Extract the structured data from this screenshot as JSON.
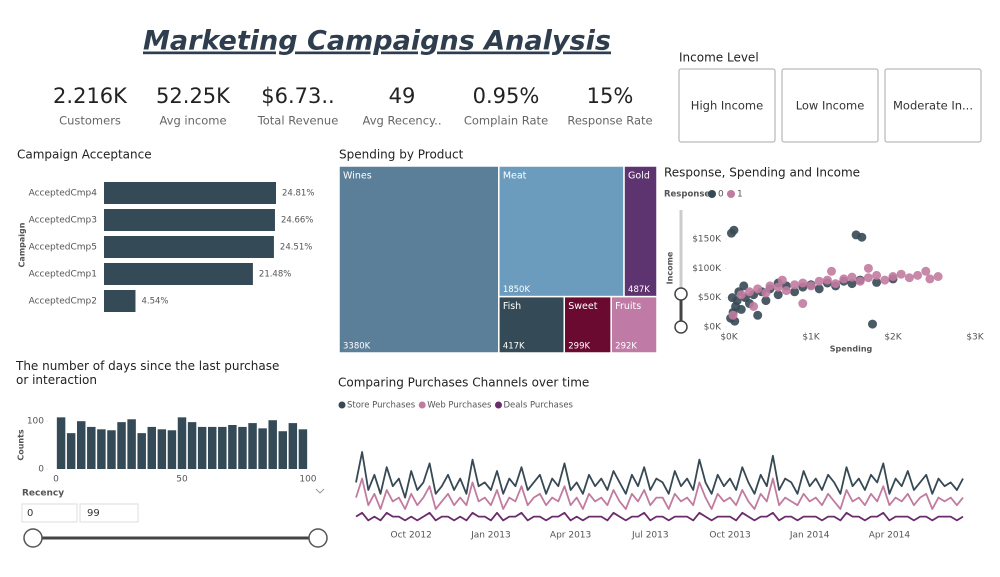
{
  "header": {
    "title": "Marketing Campaigns Analysis"
  },
  "kpis": [
    {
      "value": "2.216K",
      "label": "Customers"
    },
    {
      "value": "52.25K",
      "label": "Avg income"
    },
    {
      "value": "$6.73..",
      "label": "Total Revenue"
    },
    {
      "value": "49",
      "label": "Avg Recency.."
    },
    {
      "value": "0.95%",
      "label": "Complain Rate"
    },
    {
      "value": "15%",
      "label": "Response Rate"
    }
  ],
  "income_slicer": {
    "title": "Income Level",
    "options": [
      "High Income",
      "Low Income",
      "Moderate In..."
    ]
  },
  "recency_slicer": {
    "title": "Recency",
    "min": 0,
    "max": 99
  },
  "chart_data": [
    {
      "type": "hbar",
      "title": "Campaign Acceptance",
      "y_label": "Campaign",
      "categories": [
        "AcceptedCmp4",
        "AcceptedCmp3",
        "AcceptedCmp5",
        "AcceptedCmp1",
        "AcceptedCmp2"
      ],
      "values": [
        24.81,
        24.66,
        24.51,
        21.48,
        4.54
      ],
      "value_labels": [
        "24.81%",
        "24.66%",
        "24.51%",
        "21.48%",
        "4.54%"
      ],
      "color": "#354a57"
    },
    {
      "type": "treemap",
      "title": "Spending by Product",
      "categories": [
        "Wines",
        "Meat",
        "Gold",
        "Fish",
        "Sweet",
        "Fruits"
      ],
      "values": [
        3380000,
        1850000,
        487000,
        417000,
        299000,
        292000
      ],
      "value_labels": [
        "3380K",
        "1850K",
        "487K",
        "417K",
        "299K",
        "292K"
      ],
      "colors": [
        "#5b7f99",
        "#6b9cbe",
        "#5e3470",
        "#354a57",
        "#6a0a30",
        "#c07aa6"
      ]
    },
    {
      "type": "scatter",
      "title": "Response, Spending and Income",
      "legend_title": "Response",
      "x_label": "Spending",
      "y_label": "Income",
      "xlim": [
        0,
        3000
      ],
      "ylim": [
        0,
        160000
      ],
      "xticks": [
        {
          "value": 0,
          "label": "$0K"
        },
        {
          "value": 1000,
          "label": "$1K"
        },
        {
          "value": 2000,
          "label": "$2K"
        },
        {
          "value": 3000,
          "label": "$3K"
        }
      ],
      "yticks": [
        {
          "value": 0,
          "label": "$0K"
        },
        {
          "value": 50000,
          "label": "$50K"
        },
        {
          "value": 100000,
          "label": "$100K"
        },
        {
          "value": 150000,
          "label": "$150K"
        }
      ],
      "series": [
        {
          "name": "0",
          "color": "#374955",
          "x": [
            30,
            60,
            1550,
            1620,
            1750,
            20,
            50,
            80,
            100,
            150,
            200,
            250,
            300,
            350,
            400,
            450,
            500,
            600,
            700,
            800,
            900,
            1000,
            1100,
            1200,
            1300,
            1400,
            1500,
            1600,
            120,
            40,
            70,
            180,
            600,
            1800,
            2000
          ],
          "values": [
            160000,
            165000,
            157000,
            153000,
            5000,
            15000,
            25000,
            35000,
            45000,
            30000,
            50000,
            40000,
            55000,
            20000,
            60000,
            45000,
            65000,
            55000,
            70000,
            60000,
            68000,
            72000,
            65000,
            75000,
            70000,
            78000,
            74000,
            80000,
            60000,
            50000,
            10000,
            70000,
            75000,
            76000,
            82000
          ]
        },
        {
          "name": "1",
          "color": "#c27ba0",
          "x": [
            150,
            250,
            350,
            450,
            500,
            600,
            700,
            800,
            900,
            1000,
            1100,
            1200,
            1300,
            1400,
            1500,
            1600,
            1700,
            1800,
            1900,
            2000,
            2100,
            2200,
            2300,
            2450,
            2550,
            1250,
            900,
            300,
            1700,
            2400,
            650,
            50
          ],
          "values": [
            55000,
            60000,
            65000,
            58000,
            70000,
            68000,
            62000,
            72000,
            75000,
            70000,
            78000,
            80000,
            74000,
            82000,
            85000,
            78000,
            84000,
            88000,
            80000,
            86000,
            90000,
            84000,
            88000,
            82000,
            86000,
            95000,
            40000,
            35000,
            100000,
            95000,
            80000,
            20000
          ]
        }
      ]
    },
    {
      "type": "histogram",
      "title": "The number of days since the last purchase or interaction",
      "y_label": "Counts",
      "bins": [
        0,
        4,
        8,
        12,
        16,
        20,
        24,
        28,
        32,
        36,
        40,
        44,
        48,
        52,
        56,
        60,
        64,
        68,
        72,
        76,
        80,
        84,
        88,
        92,
        96,
        100
      ],
      "values": [
        108,
        75,
        100,
        88,
        83,
        81,
        98,
        104,
        75,
        88,
        83,
        81,
        108,
        98,
        88,
        88,
        88,
        92,
        88,
        96,
        85,
        102,
        79,
        96,
        83
      ],
      "color": "#354a57",
      "xlim": [
        -2,
        102
      ],
      "ylim": [
        0,
        115
      ],
      "xticks": [
        0,
        50,
        100
      ],
      "yticks": [
        0,
        100
      ]
    },
    {
      "type": "line",
      "title": "Comparing Purchases Channels over time",
      "categories": [
        null,
        null,
        null,
        null,
        null,
        null,
        null,
        null,
        null,
        "Oct 2012",
        null,
        null,
        null,
        null,
        null,
        null,
        null,
        null,
        null,
        null,
        null,
        null,
        "Jan 2013",
        null,
        null,
        null,
        null,
        null,
        null,
        null,
        null,
        null,
        null,
        null,
        null,
        "Apr 2013",
        null,
        null,
        null,
        null,
        null,
        null,
        null,
        null,
        null,
        null,
        null,
        null,
        "Jul 2013",
        null,
        null,
        null,
        null,
        null,
        null,
        null,
        null,
        null,
        null,
        null,
        null,
        "Oct 2013",
        null,
        null,
        null,
        null,
        null,
        null,
        null,
        null,
        null,
        null,
        null,
        null,
        "Jan 2014",
        null,
        null,
        null,
        null,
        null,
        null,
        null,
        null,
        null,
        null,
        null,
        null,
        "Apr 2014",
        null,
        null,
        null,
        null,
        null,
        null,
        null,
        null,
        null,
        null,
        null,
        null
      ],
      "series": [
        {
          "name": "Store Purchases",
          "color": "#374955",
          "values": [
            12,
            20,
            10,
            14,
            9,
            16,
            11,
            13,
            8,
            15,
            10,
            12,
            17,
            9,
            11,
            14,
            10,
            13,
            9,
            18,
            11,
            12,
            10,
            15,
            9,
            13,
            11,
            16,
            10,
            12,
            14,
            9,
            13,
            11,
            17,
            10,
            12,
            9,
            14,
            11,
            13,
            10,
            15,
            12,
            9,
            14,
            11,
            16,
            10,
            13,
            12,
            9,
            15,
            11,
            13,
            10,
            18,
            12,
            9,
            14,
            11,
            13,
            10,
            16,
            12,
            9,
            14,
            11,
            19,
            10,
            13,
            12,
            9,
            15,
            11,
            13,
            10,
            14,
            12,
            9,
            16,
            11,
            13,
            10,
            14,
            12,
            17,
            9,
            13,
            11,
            15,
            10,
            12,
            14,
            9,
            13,
            11,
            12,
            10,
            13
          ]
        },
        {
          "name": "Web Purchases",
          "color": "#c27ba0",
          "values": [
            8,
            13,
            6,
            9,
            5,
            10,
            7,
            8,
            5,
            9,
            6,
            8,
            11,
            5,
            7,
            9,
            6,
            8,
            6,
            12,
            7,
            8,
            6,
            10,
            5,
            8,
            7,
            11,
            6,
            8,
            9,
            6,
            8,
            7,
            11,
            6,
            8,
            5,
            9,
            7,
            8,
            6,
            10,
            7,
            5,
            9,
            7,
            10,
            6,
            8,
            8,
            5,
            9,
            7,
            8,
            6,
            12,
            8,
            5,
            9,
            7,
            8,
            6,
            10,
            7,
            5,
            9,
            7,
            13,
            6,
            8,
            7,
            6,
            9,
            7,
            8,
            6,
            9,
            7,
            5,
            10,
            7,
            8,
            6,
            9,
            7,
            11,
            6,
            8,
            7,
            9,
            6,
            8,
            9,
            5,
            8,
            7,
            8,
            6,
            8
          ]
        },
        {
          "name": "Deals Purchases",
          "color": "#6b2c6b",
          "values": [
            3,
            4,
            2,
            3,
            2,
            4,
            3,
            3,
            2,
            3,
            2,
            3,
            4,
            2,
            3,
            3,
            2,
            3,
            2,
            4,
            3,
            3,
            2,
            4,
            2,
            3,
            3,
            4,
            2,
            3,
            3,
            2,
            3,
            3,
            4,
            2,
            3,
            2,
            3,
            3,
            3,
            2,
            4,
            3,
            2,
            3,
            3,
            4,
            2,
            3,
            3,
            2,
            3,
            3,
            3,
            2,
            4,
            3,
            2,
            3,
            3,
            3,
            2,
            4,
            3,
            2,
            3,
            3,
            4,
            2,
            3,
            3,
            2,
            3,
            3,
            3,
            2,
            3,
            3,
            2,
            4,
            3,
            3,
            2,
            3,
            3,
            4,
            2,
            3,
            3,
            3,
            2,
            3,
            3,
            2,
            3,
            3,
            3,
            2,
            3
          ]
        }
      ]
    }
  ]
}
